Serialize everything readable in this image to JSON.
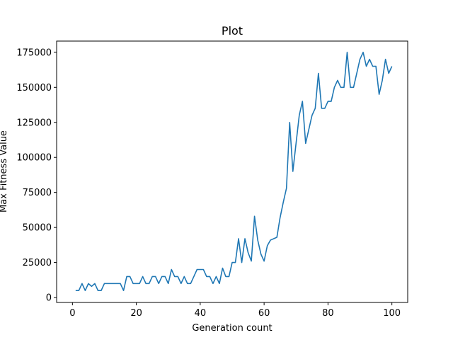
{
  "chart_data": {
    "type": "line",
    "title": "Plot",
    "xlabel": "Generation count",
    "ylabel": "Max Fitness Value",
    "xlim": [
      -4.95,
      104.95
    ],
    "ylim": [
      -3500,
      183000
    ],
    "grid": false,
    "x_ticks": [
      0,
      20,
      40,
      60,
      80,
      100
    ],
    "y_ticks": [
      0,
      25000,
      50000,
      75000,
      100000,
      125000,
      150000,
      175000
    ],
    "x_tick_labels": [
      "0",
      "20",
      "40",
      "60",
      "80",
      "100"
    ],
    "y_tick_labels": [
      "0",
      "25000",
      "50000",
      "75000",
      "100000",
      "125000",
      "150000",
      "175000"
    ],
    "series": [
      {
        "color": "#1f77b4",
        "x": [
          1,
          2,
          3,
          4,
          5,
          6,
          7,
          8,
          9,
          10,
          11,
          12,
          13,
          14,
          15,
          16,
          17,
          18,
          19,
          20,
          21,
          22,
          23,
          24,
          25,
          26,
          27,
          28,
          29,
          30,
          31,
          32,
          33,
          34,
          35,
          36,
          37,
          38,
          39,
          40,
          41,
          42,
          43,
          44,
          45,
          46,
          47,
          48,
          49,
          50,
          51,
          52,
          53,
          54,
          55,
          56,
          57,
          58,
          59,
          60,
          61,
          62,
          63,
          64,
          65,
          66,
          67,
          68,
          69,
          70,
          71,
          72,
          73,
          74,
          75,
          76,
          77,
          78,
          79,
          80,
          81,
          82,
          83,
          84,
          85,
          86,
          87,
          88,
          89,
          90,
          91,
          92,
          93,
          94,
          95,
          96,
          97,
          98,
          99,
          100
        ],
        "values": [
          5000,
          5000,
          10000,
          5000,
          10000,
          8000,
          10000,
          5000,
          5000,
          10000,
          10000,
          10000,
          10000,
          10000,
          10000,
          5000,
          15000,
          15000,
          10000,
          10000,
          10000,
          15000,
          10000,
          10000,
          15000,
          15000,
          10000,
          15000,
          15000,
          10000,
          20000,
          15000,
          15000,
          10000,
          15000,
          10000,
          10000,
          15000,
          20000,
          20000,
          20000,
          15000,
          15000,
          10000,
          15000,
          10000,
          21000,
          15000,
          15000,
          25000,
          25000,
          42000,
          25000,
          42000,
          32000,
          26000,
          58000,
          41000,
          31000,
          26000,
          37000,
          41000,
          42000,
          43000,
          57000,
          68000,
          78000,
          125000,
          90000,
          110000,
          130000,
          140000,
          110000,
          120000,
          130000,
          135000,
          160000,
          135000,
          135000,
          140000,
          140000,
          150000,
          155000,
          150000,
          150000,
          175000,
          150000,
          150000,
          160000,
          170000,
          175000,
          165000,
          170000,
          165000,
          165000,
          145000,
          155000,
          170000,
          160000,
          165000
        ]
      }
    ]
  }
}
